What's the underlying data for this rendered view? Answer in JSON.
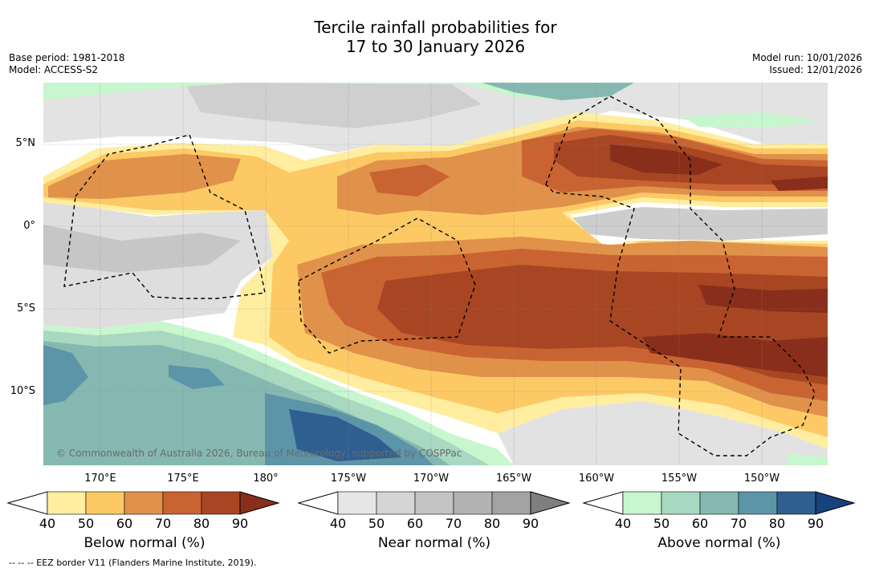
{
  "title_line1": "Tercile rainfall probabilities for",
  "title_line2": "17 to 30 January 2026",
  "base_period": "Base period: 1981-2018",
  "model": "Model: ACCESS-S2",
  "model_run": "Model run: 10/01/2026",
  "issued": "Issued: 12/01/2026",
  "map": {
    "lat_labels": [
      "5°N",
      "0°",
      "5°S",
      "10°S"
    ],
    "lon_labels": [
      "170°E",
      "175°E",
      "180°",
      "175°W",
      "170°W",
      "165°W",
      "160°W",
      "155°W",
      "150°W"
    ],
    "copyright": "© Commonwealth of Australia 2026, Bureau of Meteorology, supported by COSPPac"
  },
  "colorbars": [
    {
      "title": "Below normal (%)",
      "ticks": [
        "40",
        "50",
        "60",
        "70",
        "80",
        "90"
      ],
      "colors": [
        "#ffffff",
        "#ffeea0",
        "#fdc965",
        "#e0914a",
        "#c96432",
        "#a84624",
        "#8a2e1c"
      ]
    },
    {
      "title": "Near normal (%)",
      "ticks": [
        "40",
        "50",
        "60",
        "70",
        "80",
        "90"
      ],
      "colors": [
        "#ffffff",
        "#e6e6e6",
        "#d5d5d5",
        "#c4c4c4",
        "#b3b3b3",
        "#a3a3a3",
        "#7f7f7f"
      ]
    },
    {
      "title": "Above normal (%)",
      "ticks": [
        "40",
        "50",
        "60",
        "70",
        "80",
        "90"
      ],
      "colors": [
        "#ffffff",
        "#c8f7cf",
        "#a8d9c0",
        "#84b8b0",
        "#5c94a8",
        "#2f5f90",
        "#18427c"
      ]
    }
  ],
  "footer": "--  --  -- EEZ border V11 (Flanders Marine Institute, 2019)."
}
